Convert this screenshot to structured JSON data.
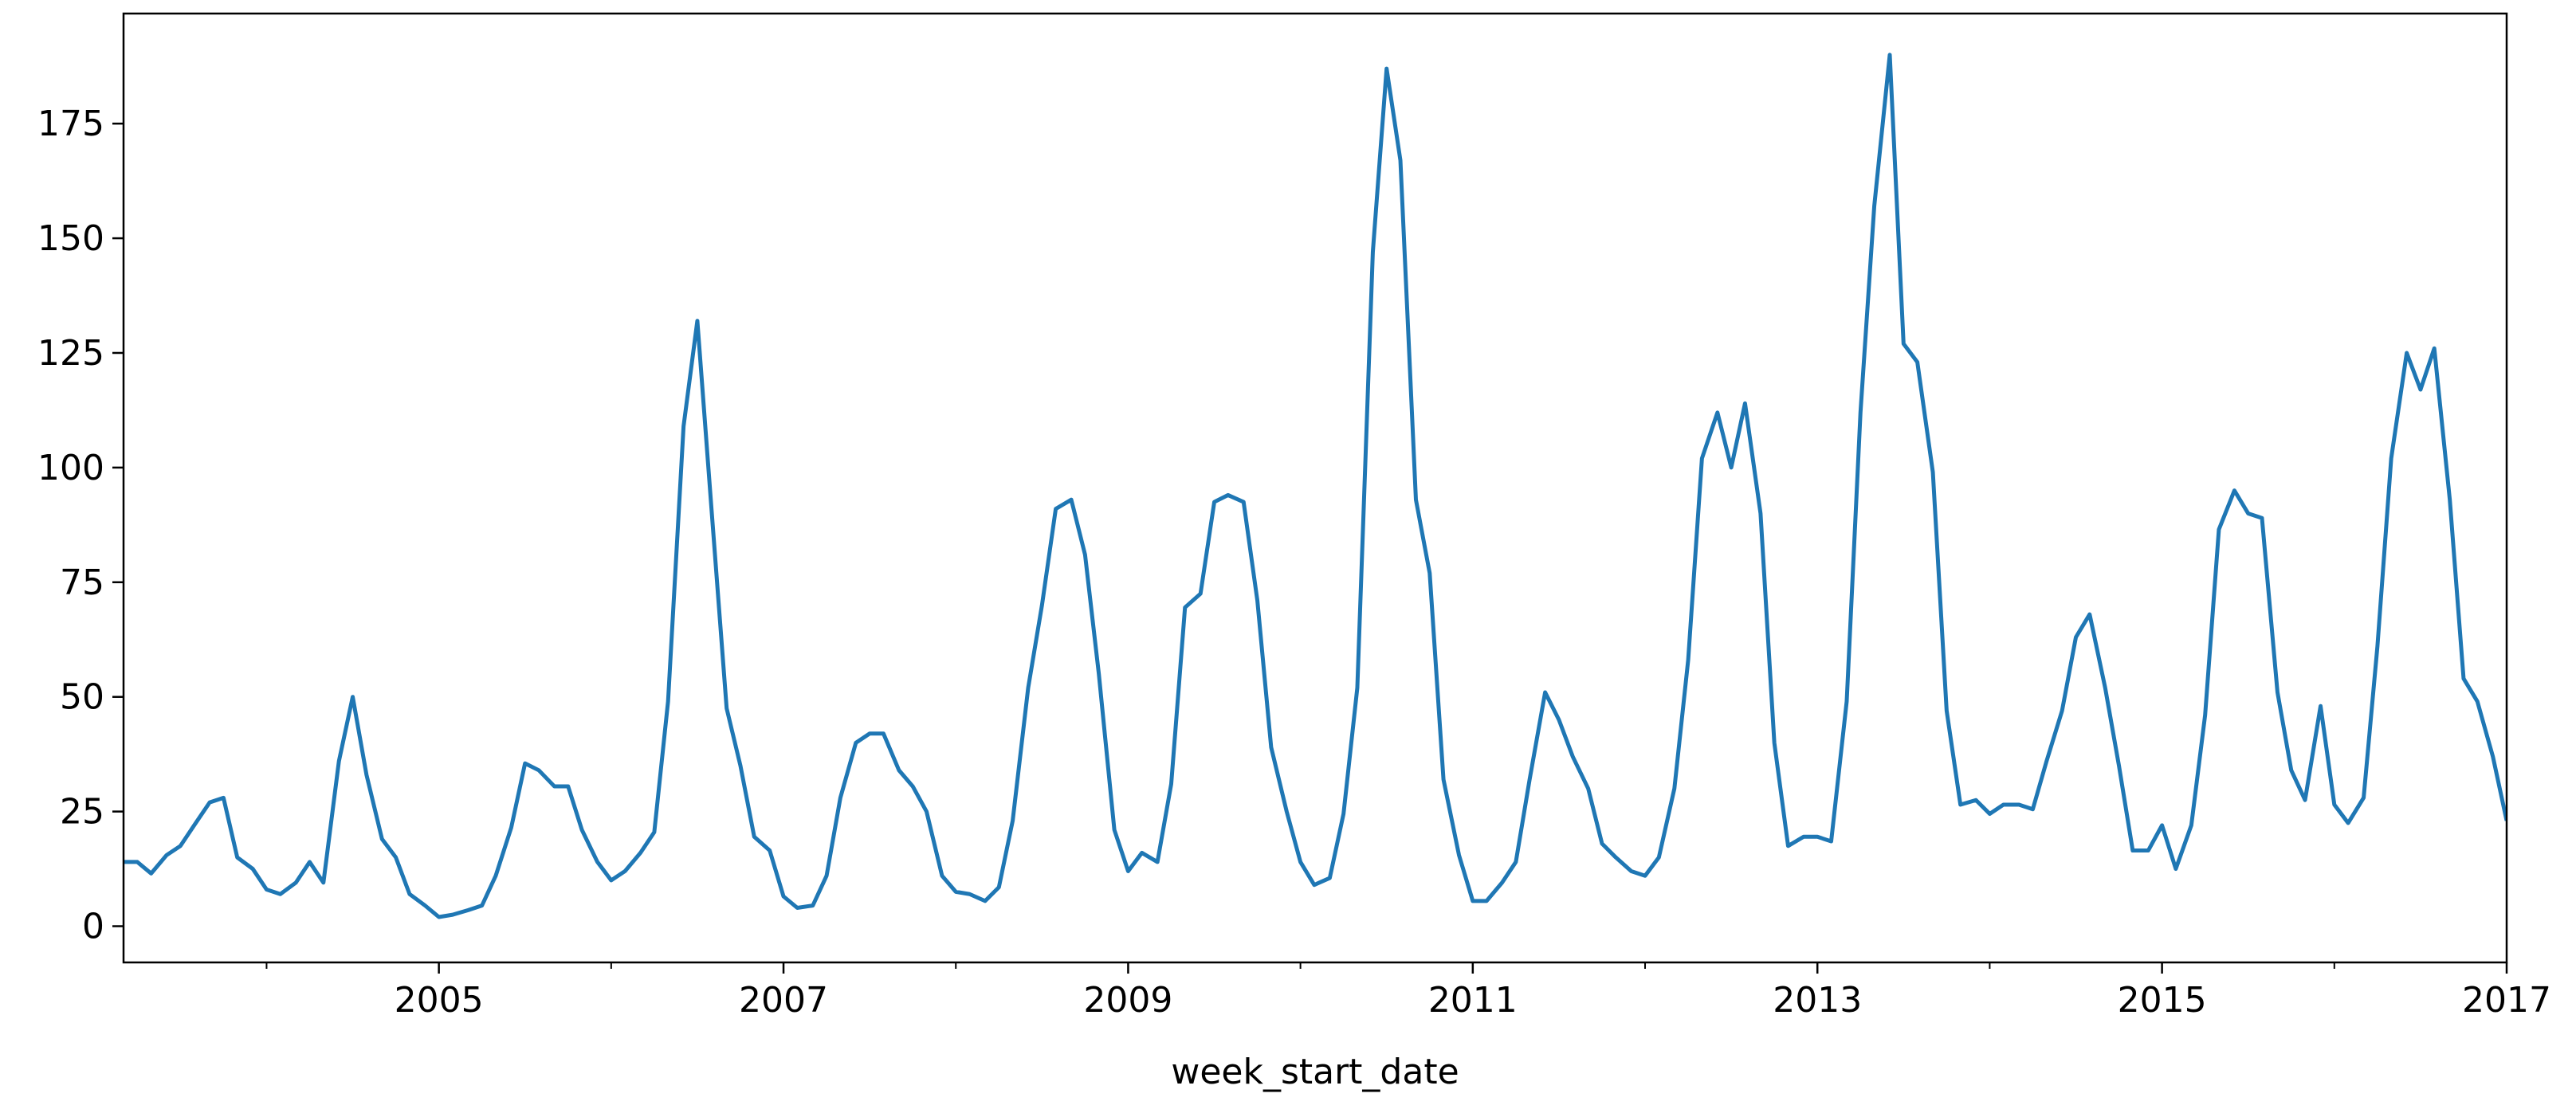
{
  "chart_data": {
    "type": "line",
    "x_label": "week_start_date",
    "color": "#1f77b4",
    "x": [
      2003.17,
      2003.25,
      2003.33,
      2003.42,
      2003.5,
      2003.58,
      2003.67,
      2003.75,
      2003.83,
      2003.92,
      2004.0,
      2004.08,
      2004.17,
      2004.25,
      2004.33,
      2004.42,
      2004.5,
      2004.58,
      2004.67,
      2004.75,
      2004.83,
      2004.92,
      2005.0,
      2005.08,
      2005.17,
      2005.25,
      2005.33,
      2005.42,
      2005.5,
      2005.58,
      2005.67,
      2005.75,
      2005.83,
      2005.92,
      2006.0,
      2006.08,
      2006.17,
      2006.25,
      2006.33,
      2006.42,
      2006.5,
      2006.58,
      2006.67,
      2006.75,
      2006.83,
      2006.92,
      2007.0,
      2007.08,
      2007.17,
      2007.25,
      2007.33,
      2007.42,
      2007.5,
      2007.58,
      2007.67,
      2007.75,
      2007.83,
      2007.92,
      2008.0,
      2008.08,
      2008.17,
      2008.25,
      2008.33,
      2008.42,
      2008.5,
      2008.58,
      2008.67,
      2008.75,
      2008.83,
      2008.92,
      2009.0,
      2009.08,
      2009.17,
      2009.25,
      2009.33,
      2009.42,
      2009.5,
      2009.58,
      2009.67,
      2009.75,
      2009.83,
      2009.92,
      2010.0,
      2010.08,
      2010.17,
      2010.25,
      2010.33,
      2010.42,
      2010.5,
      2010.58,
      2010.67,
      2010.75,
      2010.83,
      2010.92,
      2011.0,
      2011.08,
      2011.17,
      2011.25,
      2011.33,
      2011.42,
      2011.5,
      2011.58,
      2011.67,
      2011.75,
      2011.83,
      2011.92,
      2012.0,
      2012.08,
      2012.17,
      2012.25,
      2012.33,
      2012.42,
      2012.5,
      2012.58,
      2012.67,
      2012.75,
      2012.83,
      2012.92,
      2013.0,
      2013.08,
      2013.17,
      2013.25,
      2013.33,
      2013.42,
      2013.5,
      2013.58,
      2013.67,
      2013.75,
      2013.83,
      2013.92,
      2014.0,
      2014.08,
      2014.17,
      2014.25,
      2014.33,
      2014.42,
      2014.5,
      2014.58,
      2014.67,
      2014.75,
      2014.83,
      2014.92,
      2015.0,
      2015.08,
      2015.17,
      2015.25,
      2015.33,
      2015.42,
      2015.5,
      2015.58,
      2015.67,
      2015.75,
      2015.83,
      2015.92,
      2016.0,
      2016.08,
      2016.17,
      2016.25,
      2016.33,
      2016.42,
      2016.5,
      2016.58,
      2016.67,
      2016.75,
      2016.83,
      2016.92,
      2017.0
    ],
    "values": [
      14,
      14,
      11.5,
      15.5,
      17.5,
      22,
      27,
      28,
      15,
      12.5,
      8,
      7,
      9.5,
      14,
      9.5,
      36,
      50,
      33,
      19,
      15,
      7,
      4.5,
      2,
      2.5,
      3.5,
      4.5,
      11,
      21.5,
      35.5,
      34,
      30.5,
      30.5,
      21,
      14,
      10,
      12,
      16,
      20.5,
      49,
      109,
      132,
      92,
      47.5,
      35,
      19.5,
      16.5,
      6.5,
      4,
      4.5,
      11,
      28,
      40,
      42,
      42,
      34,
      30.5,
      25,
      11,
      7.5,
      7,
      5.5,
      8.5,
      23,
      52,
      70,
      91,
      93,
      81,
      55,
      21,
      12,
      16,
      14,
      31,
      69.5,
      72.5,
      92.5,
      94,
      92.5,
      71,
      39,
      25,
      14,
      9,
      10.5,
      24.5,
      52,
      147,
      187,
      167,
      93,
      77,
      32,
      15.5,
      5.5,
      5.5,
      9.5,
      14,
      32,
      51,
      45,
      37,
      30,
      18,
      15,
      12,
      11,
      15,
      30,
      58,
      102,
      112,
      100,
      114,
      90,
      40,
      17.5,
      19.5,
      19.5,
      18.5,
      49,
      112,
      157,
      190,
      127,
      123,
      99,
      47,
      26.5,
      27.5,
      24.5,
      26.5,
      26.5,
      25.5,
      36,
      47,
      63,
      68,
      52,
      35,
      16.5,
      16.5,
      22,
      12.5,
      22,
      46,
      86.5,
      95,
      90,
      89,
      51,
      34,
      27.5,
      48,
      26.5,
      22.5,
      28,
      61,
      102,
      125,
      117,
      126,
      93,
      54,
      49,
      37,
      23
    ],
    "xlim": [
      2003.17,
      2017
    ],
    "ylim": [
      -7.9,
      199
    ],
    "xticks": [
      2005,
      2007,
      2009,
      2011,
      2013,
      2015,
      2017
    ],
    "xminorticks": [
      2004,
      2006,
      2008,
      2010,
      2012,
      2014,
      2016
    ],
    "yticks": [
      0,
      25,
      50,
      75,
      100,
      125,
      150,
      175
    ]
  }
}
